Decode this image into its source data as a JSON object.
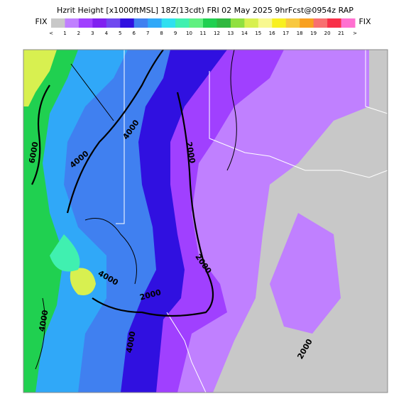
{
  "header": {
    "title": "Hzrit Height [x1000ftMSL] 18Z(13cdt) FRI 02 May 2025 9hrFcst@0954z RAP",
    "left_label": "FIX",
    "right_label": "FIX"
  },
  "colorbar": {
    "labels": [
      "<",
      "1",
      "2",
      "3",
      "4",
      "5",
      "6",
      "7",
      "8",
      "9",
      "10",
      "11",
      "12",
      "13",
      "14",
      "15",
      "16",
      "17",
      "18",
      "19",
      "20",
      "21",
      ">"
    ],
    "colors": [
      "#c8c8c8",
      "#c080ff",
      "#a040ff",
      "#8020f0",
      "#7048f0",
      "#3010e0",
      "#4080f0",
      "#30a8f8",
      "#30e0f0",
      "#40f0b0",
      "#60f080",
      "#20d050",
      "#30b840",
      "#90e040",
      "#d8f050",
      "#f8f890",
      "#f8f020",
      "#f8c840",
      "#f8a020",
      "#f87070",
      "#f83048",
      "#ff70d0"
    ]
  },
  "contour_labels": [
    "6000",
    "4000",
    "4000",
    "2000",
    "2000",
    "2000",
    "4000",
    "2000",
    "4000",
    "4000"
  ]
}
